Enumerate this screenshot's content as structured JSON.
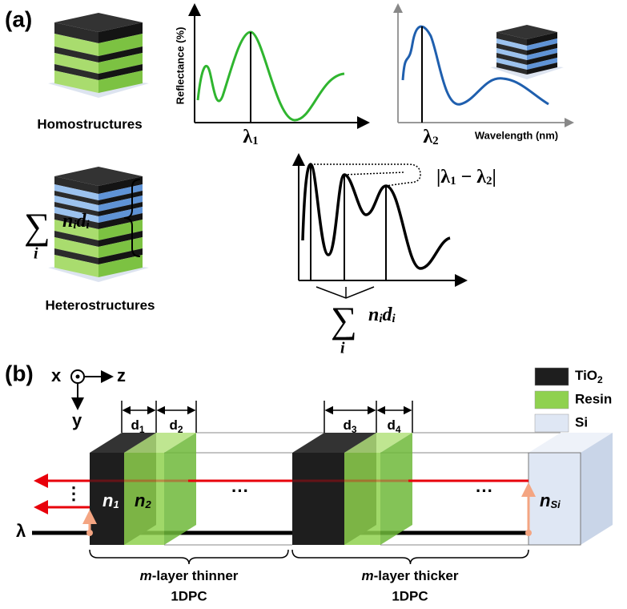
{
  "panel_a": {
    "label": "(a)",
    "homostructures": "Homostructures",
    "heterostructures": "Heterostructures",
    "reflectance_axis": "Reflectance (%)",
    "wavelength_axis": "Wavelength (nm)",
    "lambda_1": {
      "symbol": "λ",
      "sub": "1"
    },
    "lambda_2": {
      "symbol": "λ",
      "sub": "2"
    },
    "difference": {
      "parts": [
        "|λ",
        "1",
        " − λ",
        "2",
        "|"
      ]
    },
    "sum": {
      "symbol": "∑",
      "index": "i",
      "n": "n",
      "n_sub": "i",
      "d": "d",
      "d_sub": "i"
    }
  },
  "panel_b": {
    "label": "(b)",
    "axes": {
      "x": "x",
      "y": "y",
      "z": "z"
    },
    "legend": [
      {
        "name": "TiO",
        "sub": "2",
        "color": "#1e1e1e"
      },
      {
        "name": "Resin",
        "color": "#8fd14f"
      },
      {
        "name": "Si",
        "color": "#dfe7f4"
      }
    ],
    "thickness_labels": [
      {
        "symbol": "d",
        "sub": "1"
      },
      {
        "symbol": "d",
        "sub": "2"
      },
      {
        "symbol": "d",
        "sub": "3"
      },
      {
        "symbol": "d",
        "sub": "4"
      }
    ],
    "index_labels": [
      {
        "symbol": "n",
        "sub": "1"
      },
      {
        "symbol": "n",
        "sub": "2"
      },
      {
        "symbol": "n",
        "sub": "Si"
      }
    ],
    "wavelength": "λ",
    "ellipsis": "···",
    "vertical_ellipsis": "⋮",
    "groups": [
      {
        "prefix": "m",
        "text": "-layer thinner",
        "line2": "1DPC"
      },
      {
        "prefix": "m",
        "text": "-layer thicker",
        "line2": "1DPC"
      }
    ]
  }
}
